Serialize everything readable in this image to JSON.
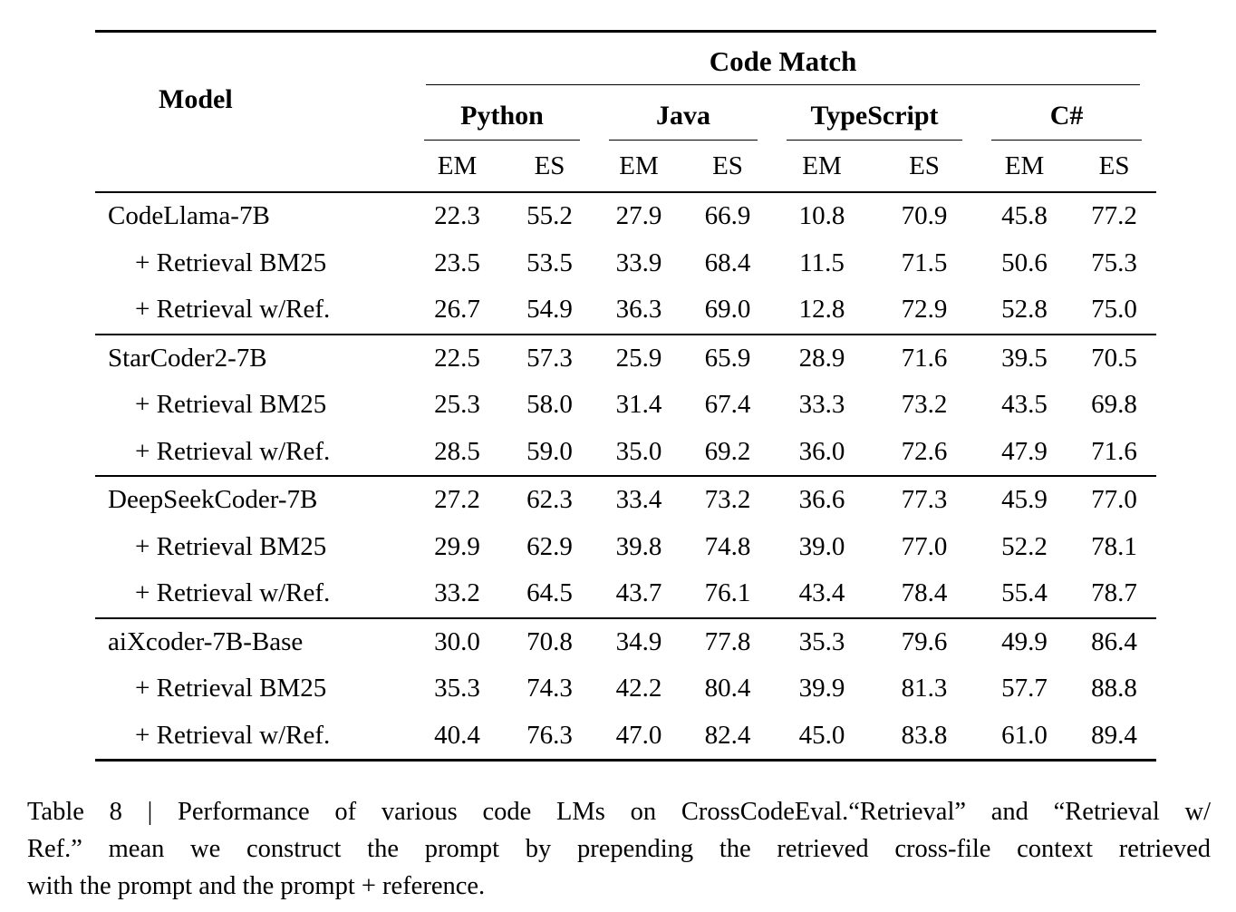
{
  "page": {
    "background_color": "#ffffff",
    "text_color": "#000000",
    "rule_color": "#000000"
  },
  "table": {
    "header": {
      "model_label": "Model",
      "span_label": "Code Match",
      "groups": [
        "Python",
        "Java",
        "TypeScript",
        "C#"
      ],
      "metrics": [
        "EM",
        "ES"
      ]
    },
    "groups": [
      {
        "rows": [
          {
            "model": "CodeLlama-7B",
            "values": [
              "22.3",
              "55.2",
              "27.9",
              "66.9",
              "10.8",
              "70.9",
              "45.8",
              "77.2"
            ]
          },
          {
            "model": "+ Retrieval BM25",
            "values": [
              "23.5",
              "53.5",
              "33.9",
              "68.4",
              "11.5",
              "71.5",
              "50.6",
              "75.3"
            ]
          },
          {
            "model": "+ Retrieval w/Ref.",
            "values": [
              "26.7",
              "54.9",
              "36.3",
              "69.0",
              "12.8",
              "72.9",
              "52.8",
              "75.0"
            ]
          }
        ]
      },
      {
        "rows": [
          {
            "model": "StarCoder2-7B",
            "values": [
              "22.5",
              "57.3",
              "25.9",
              "65.9",
              "28.9",
              "71.6",
              "39.5",
              "70.5"
            ]
          },
          {
            "model": "+ Retrieval BM25",
            "values": [
              "25.3",
              "58.0",
              "31.4",
              "67.4",
              "33.3",
              "73.2",
              "43.5",
              "69.8"
            ]
          },
          {
            "model": "+ Retrieval w/Ref.",
            "values": [
              "28.5",
              "59.0",
              "35.0",
              "69.2",
              "36.0",
              "72.6",
              "47.9",
              "71.6"
            ]
          }
        ]
      },
      {
        "rows": [
          {
            "model": "DeepSeekCoder-7B",
            "values": [
              "27.2",
              "62.3",
              "33.4",
              "73.2",
              "36.6",
              "77.3",
              "45.9",
              "77.0"
            ]
          },
          {
            "model": "+ Retrieval BM25",
            "values": [
              "29.9",
              "62.9",
              "39.8",
              "74.8",
              "39.0",
              "77.0",
              "52.2",
              "78.1"
            ]
          },
          {
            "model": "+ Retrieval w/Ref.",
            "values": [
              "33.2",
              "64.5",
              "43.7",
              "76.1",
              "43.4",
              "78.4",
              "55.4",
              "78.7"
            ]
          }
        ]
      },
      {
        "rows": [
          {
            "model": "aiXcoder-7B-Base",
            "values": [
              "30.0",
              "70.8",
              "34.9",
              "77.8",
              "35.3",
              "79.6",
              "49.9",
              "86.4"
            ]
          },
          {
            "model": "+ Retrieval BM25",
            "values": [
              "35.3",
              "74.3",
              "42.2",
              "80.4",
              "39.9",
              "81.3",
              "57.7",
              "88.8"
            ]
          },
          {
            "model": "+ Retrieval w/Ref.",
            "values": [
              "40.4",
              "76.3",
              "47.0",
              "82.4",
              "45.0",
              "83.8",
              "61.0",
              "89.4"
            ]
          }
        ]
      }
    ]
  },
  "caption": {
    "lines": [
      "Table 8 | Performance of various code LMs on CrossCodeEval.“Retrieval” and “Retrieval w/",
      "Ref.” mean we construct the prompt by prepending the retrieved cross-file context retrieved",
      "with the prompt and the prompt + reference."
    ]
  }
}
